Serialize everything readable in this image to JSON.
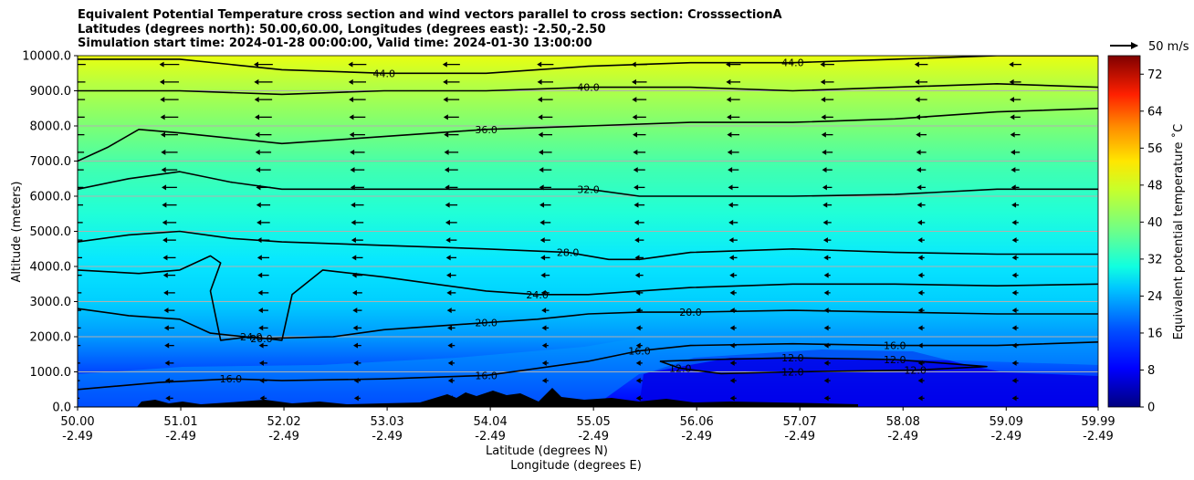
{
  "chart_data": {
    "type": "contourf",
    "title_lines": [
      "Equivalent Potential Temperature cross section and wind vectors parallel to cross section: CrosssectionA",
      "Latitudes (degrees north): 50.00,60.00, Longitudes (degrees east): -2.50,-2.50",
      "Simulation start time: 2024-01-28 00:00:00, Valid time: 2024-01-30 13:00:00"
    ],
    "ylabel": "Altitude (meters)",
    "xlabel": "Latitude (degrees N)",
    "xlabel2": "Longitude (degrees E)",
    "xlim": [
      50.0,
      59.99
    ],
    "ylim": [
      0,
      10000
    ],
    "y_ticks": [
      {
        "value": 0,
        "label": "0.0"
      },
      {
        "value": 1000,
        "label": "1000.0"
      },
      {
        "value": 2000,
        "label": "2000.0"
      },
      {
        "value": 3000,
        "label": "3000.0"
      },
      {
        "value": 4000,
        "label": "4000.0"
      },
      {
        "value": 5000,
        "label": "5000.0"
      },
      {
        "value": 6000,
        "label": "6000.0"
      },
      {
        "value": 7000,
        "label": "7000.0"
      },
      {
        "value": 8000,
        "label": "8000.0"
      },
      {
        "value": 9000,
        "label": "9000.0"
      },
      {
        "value": 10000,
        "label": "10000.0"
      }
    ],
    "x_ticks": [
      {
        "lat": "50.00",
        "lon": "-2.49"
      },
      {
        "lat": "51.01",
        "lon": "-2.49"
      },
      {
        "lat": "52.02",
        "lon": "-2.49"
      },
      {
        "lat": "53.03",
        "lon": "-2.49"
      },
      {
        "lat": "54.04",
        "lon": "-2.49"
      },
      {
        "lat": "55.05",
        "lon": "-2.49"
      },
      {
        "lat": "56.06",
        "lon": "-2.49"
      },
      {
        "lat": "57.07",
        "lon": "-2.49"
      },
      {
        "lat": "58.08",
        "lon": "-2.49"
      },
      {
        "lat": "59.09",
        "lon": "-2.49"
      },
      {
        "lat": "59.99",
        "lon": "-2.49"
      }
    ],
    "grid": "horizontal",
    "contour_lines": [
      {
        "level": 12,
        "labels": [
          "12.0",
          "12.0",
          "12.0",
          "12.0",
          "12.0"
        ],
        "points": [
          [
            55.7,
            1300
          ],
          [
            56.2,
            1350
          ],
          [
            57,
            1400
          ],
          [
            58,
            1350
          ],
          [
            58.9,
            1150
          ],
          [
            58.2,
            1050
          ],
          [
            57,
            1000
          ],
          [
            56.3,
            950
          ],
          [
            55.9,
            1100
          ],
          [
            55.7,
            1300
          ]
        ]
      },
      {
        "level": 16,
        "labels": [
          "16.0",
          "16.0",
          "16.0",
          "16.0"
        ],
        "points": [
          [
            50,
            500
          ],
          [
            50.8,
            700
          ],
          [
            51.5,
            800
          ],
          [
            52,
            750
          ],
          [
            53,
            800
          ],
          [
            54,
            900
          ],
          [
            55,
            1300
          ],
          [
            55.5,
            1600
          ],
          [
            56,
            1750
          ],
          [
            57,
            1800
          ],
          [
            58,
            1750
          ],
          [
            59,
            1750
          ],
          [
            59.99,
            1850
          ]
        ]
      },
      {
        "level": 20,
        "labels": [
          "20.0",
          "20.0",
          "20.0"
        ],
        "points": [
          [
            50,
            2800
          ],
          [
            50.5,
            2600
          ],
          [
            51,
            2500
          ],
          [
            51.3,
            2100
          ],
          [
            51.8,
            1950
          ],
          [
            52.5,
            2000
          ],
          [
            53,
            2200
          ],
          [
            53.5,
            2300
          ],
          [
            54,
            2400
          ],
          [
            54.5,
            2500
          ],
          [
            55,
            2650
          ],
          [
            55.5,
            2700
          ],
          [
            56,
            2700
          ],
          [
            57,
            2750
          ],
          [
            58,
            2700
          ],
          [
            59,
            2650
          ],
          [
            59.99,
            2650
          ]
        ]
      },
      {
        "level": 24,
        "labels": [
          "24.0",
          "24.0"
        ],
        "points": [
          [
            50,
            3900
          ],
          [
            50.6,
            3800
          ],
          [
            51.0,
            3900
          ],
          [
            51.3,
            4300
          ],
          [
            51.4,
            4100
          ],
          [
            51.3,
            3300
          ],
          [
            51.4,
            1900
          ],
          [
            51.7,
            2000
          ],
          [
            52,
            1900
          ],
          [
            52.1,
            3200
          ],
          [
            52.4,
            3900
          ],
          [
            53,
            3700
          ],
          [
            53.5,
            3500
          ],
          [
            54,
            3300
          ],
          [
            54.5,
            3200
          ],
          [
            55,
            3200
          ],
          [
            55.5,
            3300
          ],
          [
            56,
            3400
          ],
          [
            57,
            3500
          ],
          [
            58,
            3500
          ],
          [
            59,
            3450
          ],
          [
            59.99,
            3500
          ]
        ]
      },
      {
        "level": 28,
        "labels": [
          "28.0"
        ],
        "points": [
          [
            50,
            4700
          ],
          [
            50.5,
            4900
          ],
          [
            51,
            5000
          ],
          [
            51.5,
            4800
          ],
          [
            52,
            4700
          ],
          [
            53,
            4600
          ],
          [
            54,
            4500
          ],
          [
            54.8,
            4400
          ],
          [
            55.2,
            4200
          ],
          [
            55.5,
            4200
          ],
          [
            56,
            4400
          ],
          [
            57,
            4500
          ],
          [
            58,
            4400
          ],
          [
            59,
            4350
          ],
          [
            59.99,
            4350
          ]
        ]
      },
      {
        "level": 32,
        "labels": [
          "32.0"
        ],
        "points": [
          [
            50,
            6200
          ],
          [
            50.5,
            6500
          ],
          [
            51,
            6700
          ],
          [
            51.5,
            6400
          ],
          [
            52,
            6200
          ],
          [
            53,
            6200
          ],
          [
            54,
            6200
          ],
          [
            55,
            6200
          ],
          [
            55.5,
            6000
          ],
          [
            56,
            6000
          ],
          [
            57,
            6000
          ],
          [
            58,
            6050
          ],
          [
            59,
            6200
          ],
          [
            59.99,
            6200
          ]
        ]
      },
      {
        "level": 36,
        "labels": [
          "36.0"
        ],
        "points": [
          [
            50,
            7000
          ],
          [
            50.3,
            7400
          ],
          [
            50.6,
            7900
          ],
          [
            51,
            7800
          ],
          [
            52,
            7500
          ],
          [
            53,
            7700
          ],
          [
            54,
            7900
          ],
          [
            55,
            8000
          ],
          [
            56,
            8100
          ],
          [
            57,
            8100
          ],
          [
            58,
            8200
          ],
          [
            59,
            8400
          ],
          [
            59.99,
            8500
          ]
        ]
      },
      {
        "level": 40,
        "labels": [
          "40.0"
        ],
        "points": [
          [
            50,
            9000
          ],
          [
            51,
            9000
          ],
          [
            52,
            8900
          ],
          [
            53,
            9000
          ],
          [
            54,
            9000
          ],
          [
            55,
            9100
          ],
          [
            56,
            9100
          ],
          [
            57,
            9000
          ],
          [
            58,
            9100
          ],
          [
            59,
            9200
          ],
          [
            59.99,
            9100
          ]
        ]
      },
      {
        "level": 44,
        "labels": [
          "44.0",
          "44.0"
        ],
        "points": [
          [
            50,
            9900
          ],
          [
            51,
            9900
          ],
          [
            52,
            9600
          ],
          [
            53,
            9500
          ],
          [
            54,
            9500
          ],
          [
            55,
            9700
          ],
          [
            56,
            9800
          ],
          [
            57,
            9800
          ],
          [
            58,
            9900
          ],
          [
            59,
            10000
          ],
          [
            59.99,
            10000
          ]
        ]
      }
    ],
    "wind_vectors": "parallel to cross section",
    "quiver_key": "50 m/s",
    "colorbar": {
      "label": "Equivalent potential temperature ˚C",
      "range": [
        0,
        76
      ],
      "ticks": [
        "0",
        "8",
        "16",
        "24",
        "32",
        "40",
        "48",
        "56",
        "64",
        "72"
      ]
    }
  }
}
